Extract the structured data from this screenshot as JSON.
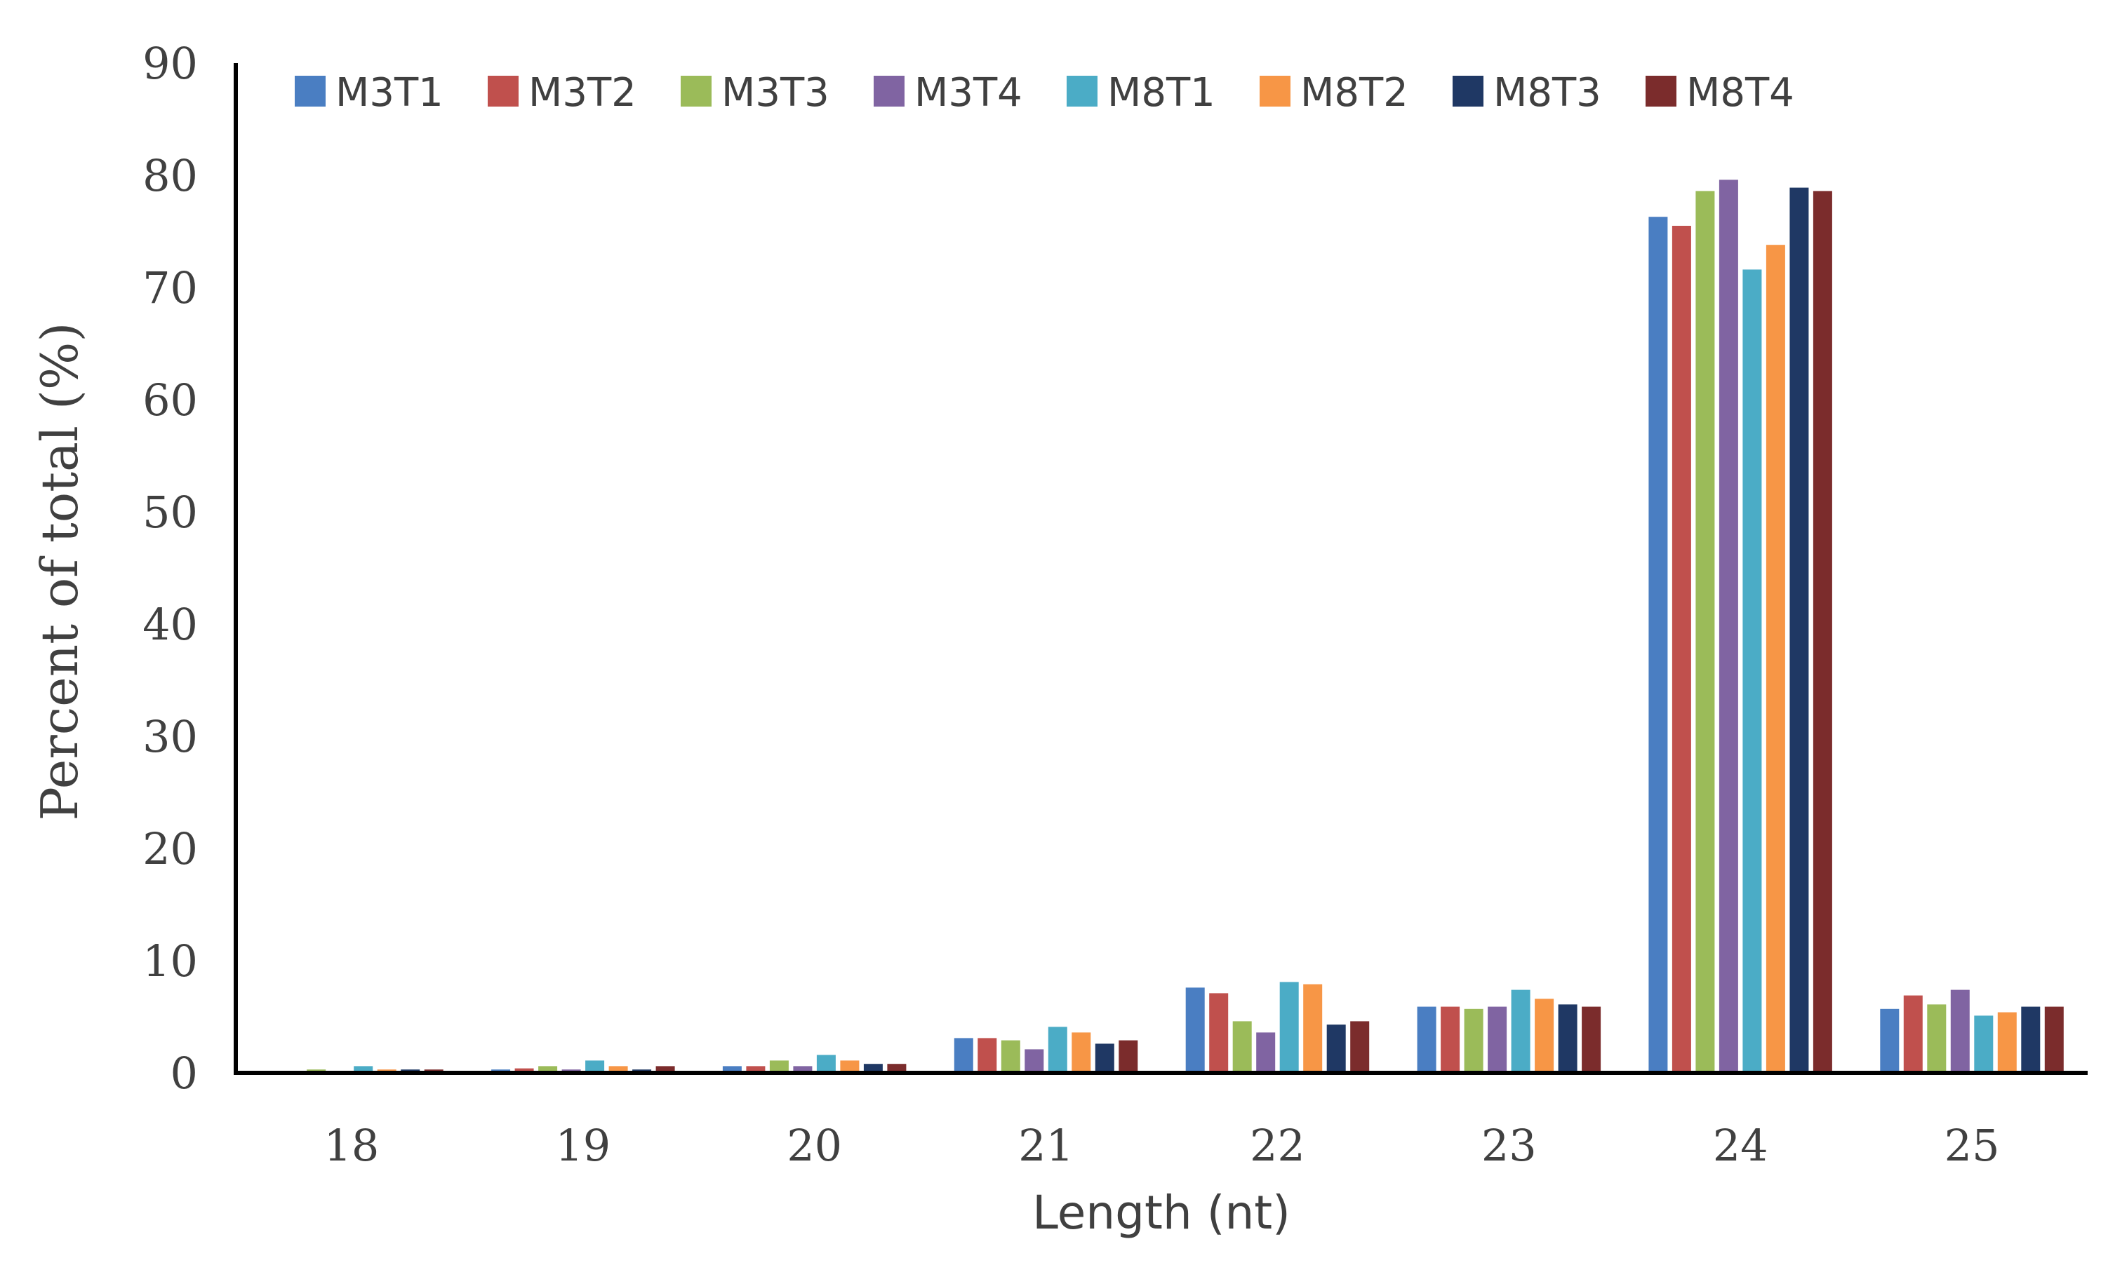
{
  "chart_data": {
    "type": "bar",
    "title": "",
    "xlabel": "Length (nt)",
    "ylabel": "Percent of total (%)",
    "ylim": [
      0,
      90
    ],
    "yticks": [
      "0",
      "10",
      "20",
      "30",
      "40",
      "50",
      "60",
      "70",
      "80",
      "90"
    ],
    "grid": false,
    "legend": "top",
    "categories": [
      "18",
      "19",
      "20",
      "21",
      "22",
      "23",
      "24",
      "25"
    ],
    "series": [
      {
        "name": "M3T1",
        "color": "#4A7EC2",
        "values": [
          0.1,
          0.3,
          0.6,
          3.1,
          7.6,
          5.9,
          76.3,
          5.7
        ]
      },
      {
        "name": "M3T2",
        "color": "#C0504D",
        "values": [
          0.1,
          0.4,
          0.6,
          3.1,
          7.1,
          5.9,
          75.5,
          6.9
        ]
      },
      {
        "name": "M3T3",
        "color": "#9BBB59",
        "values": [
          0.3,
          0.6,
          1.1,
          2.9,
          4.6,
          5.7,
          78.6,
          6.1
        ]
      },
      {
        "name": "M3T4",
        "color": "#8064A2",
        "values": [
          0.1,
          0.3,
          0.6,
          2.1,
          3.6,
          5.9,
          79.6,
          7.4
        ]
      },
      {
        "name": "M8T1",
        "color": "#4BACC6",
        "values": [
          0.6,
          1.1,
          1.6,
          4.1,
          8.1,
          7.4,
          71.6,
          5.1
        ]
      },
      {
        "name": "M8T2",
        "color": "#F79646",
        "values": [
          0.3,
          0.6,
          1.1,
          3.6,
          7.9,
          6.6,
          73.8,
          5.4
        ]
      },
      {
        "name": "M8T3",
        "color": "#1F3864",
        "values": [
          0.3,
          0.3,
          0.8,
          2.6,
          4.3,
          6.1,
          78.9,
          5.9
        ]
      },
      {
        "name": "M8T4",
        "color": "#7B2C2C",
        "values": [
          0.3,
          0.6,
          0.8,
          2.9,
          4.6,
          5.9,
          78.6,
          5.9
        ]
      }
    ]
  }
}
